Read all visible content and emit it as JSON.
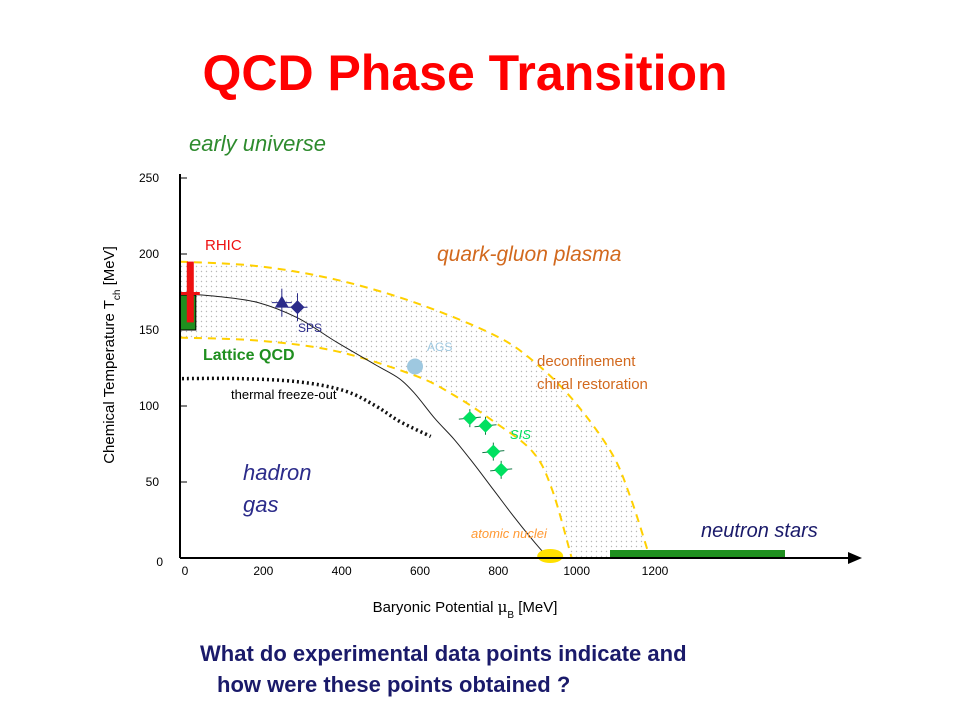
{
  "slide": {
    "title": "QCD Phase Transition",
    "question_line1": "What do experimental data points indicate and",
    "question_line2": "how were these points obtained ?"
  },
  "colors": {
    "title": "#ff0000",
    "question": "#1a1a6a",
    "early_universe": "#2e8b2e",
    "qgp": "#d2691e",
    "boundary_dashed": "#ffd000",
    "rhic": "#ee1111",
    "lattice": "#1f8f1f",
    "sps": "#2b2b8a",
    "ags": "#9ec8e0",
    "sis": "#00e060",
    "atomic_nuclei": "#ffe000",
    "neutron_stars": "#1f8f1f"
  },
  "chart_data": {
    "type": "scatter",
    "xlabel": "Baryonic Potential μ_B [MeV]",
    "xlabel_main": "Baryonic Potential ",
    "xlabel_symbol": "μ",
    "xlabel_sub": "B",
    "xlabel_unit": " [MeV]",
    "ylabel_main": "Chemical Temperature T",
    "ylabel_sub": "ch",
    "ylabel_unit": " [MeV]",
    "xlim": [
      0,
      1200
    ],
    "ylim": [
      0,
      250
    ],
    "x_ticks": [
      "0",
      "200",
      "400",
      "600",
      "800",
      "1000",
      "1200"
    ],
    "y_ticks": [
      "0",
      "50",
      "100",
      "150",
      "200",
      "250"
    ],
    "regions": {
      "early_universe": "early universe",
      "qgp": "quark-gluon plasma",
      "hadron_gas_line1": "hadron",
      "hadron_gas_line2": "gas",
      "deconfinement": "deconfinement",
      "chiral": "chiral restoration",
      "neutron_stars": "neutron stars",
      "atomic_nuclei": "atomic nuclei",
      "thermal_freeze_out": "thermal freeze-out",
      "lattice_qcd": "Lattice QCD",
      "rhic": "RHIC",
      "sps": "SPS",
      "ags": "AGS",
      "sis": "SIS"
    },
    "freeze_out_curve": [
      [
        0,
        174
      ],
      [
        100,
        172
      ],
      [
        200,
        168
      ],
      [
        300,
        158
      ],
      [
        400,
        142
      ],
      [
        500,
        127
      ],
      [
        560,
        118
      ],
      [
        600,
        108
      ],
      [
        650,
        92
      ],
      [
        700,
        78
      ],
      [
        750,
        62
      ],
      [
        800,
        45
      ],
      [
        850,
        28
      ],
      [
        900,
        12
      ],
      [
        940,
        0
      ]
    ],
    "upper_boundary": [
      [
        0,
        195
      ],
      [
        200,
        192
      ],
      [
        400,
        183
      ],
      [
        600,
        168
      ],
      [
        800,
        147
      ],
      [
        900,
        130
      ],
      [
        1000,
        105
      ],
      [
        1100,
        70
      ],
      [
        1150,
        40
      ],
      [
        1200,
        0
      ]
    ],
    "lower_boundary": [
      [
        0,
        145
      ],
      [
        200,
        143
      ],
      [
        400,
        136
      ],
      [
        600,
        120
      ],
      [
        700,
        107
      ],
      [
        800,
        90
      ],
      [
        900,
        70
      ],
      [
        950,
        45
      ],
      [
        1000,
        0
      ]
    ],
    "thermal_freeze_out_curve": [
      [
        5,
        118
      ],
      [
        150,
        118
      ],
      [
        300,
        116
      ],
      [
        420,
        110
      ],
      [
        500,
        100
      ],
      [
        560,
        90
      ],
      [
        640,
        80
      ]
    ],
    "sps_points": [
      {
        "x": 260,
        "y": 168,
        "marker": "triangle"
      },
      {
        "x": 300,
        "y": 165,
        "marker": "diamond"
      }
    ],
    "ags_points": [
      {
        "x": 600,
        "y": 126
      }
    ],
    "sis_points": [
      {
        "x": 740,
        "y": 92
      },
      {
        "x": 780,
        "y": 87
      },
      {
        "x": 800,
        "y": 70
      },
      {
        "x": 820,
        "y": 58
      }
    ],
    "lattice_qcd_band": {
      "x": [
        0,
        20
      ],
      "y": [
        150,
        173
      ]
    },
    "rhic_bar": {
      "x": 25,
      "y": [
        155,
        195
      ]
    },
    "atomic_nuclei_point": {
      "x": 935,
      "y": 0
    },
    "neutron_stars_band": {
      "x": [
        1000,
        1500
      ],
      "y": 0
    }
  }
}
